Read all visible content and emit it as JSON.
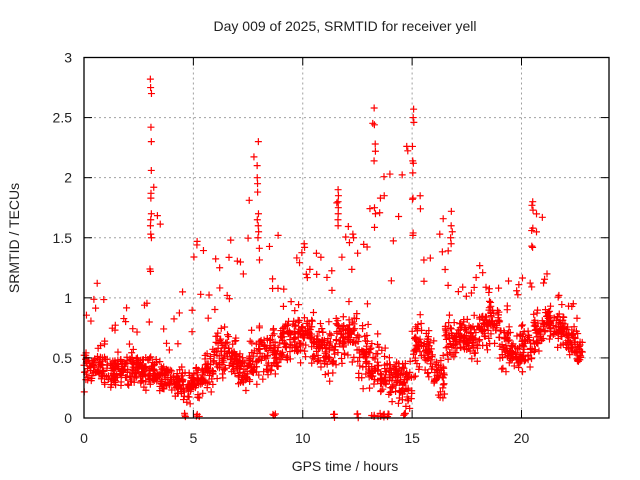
{
  "chart_data": {
    "type": "scatter",
    "title": "Day 009 of 2025, SRMTID for receiver yell",
    "xlabel": "GPS time / hours",
    "ylabel": "SRMTID / TECUs",
    "xlim": [
      0,
      24
    ],
    "ylim": [
      0,
      3
    ],
    "xticks": [
      0,
      5,
      10,
      15,
      20
    ],
    "xtick_labels": [
      "0",
      "5",
      "10",
      "15",
      "20"
    ],
    "yticks": [
      0,
      0.5,
      1,
      1.5,
      2,
      2.5,
      3
    ],
    "ytick_labels": [
      "0",
      "0.5",
      "1",
      "1.5",
      "2",
      "2.5",
      "3"
    ],
    "grid": true,
    "legend": "none",
    "marker": "+",
    "series": [
      {
        "name": "SRMTID",
        "color": "#ff0000",
        "x_extent": [
          0,
          22.8
        ],
        "note": "dense scatter (thousands of points); binned typical level and spread per ~0.5 h plus notable peak values",
        "bins": {
          "x": [
            0.25,
            0.75,
            1.25,
            1.75,
            2.25,
            2.75,
            3.25,
            3.75,
            4.25,
            4.75,
            5.25,
            5.75,
            6.25,
            6.75,
            7.25,
            7.75,
            8.25,
            8.75,
            9.25,
            9.75,
            10.25,
            10.75,
            11.25,
            11.75,
            12.25,
            12.75,
            13.25,
            13.75,
            14.25,
            14.75,
            15.25,
            15.75,
            16.25,
            16.75,
            17.25,
            17.75,
            18.25,
            18.75,
            19.25,
            19.75,
            20.25,
            20.75,
            21.25,
            21.75,
            22.25,
            22.75
          ],
          "median": [
            0.45,
            0.45,
            0.38,
            0.4,
            0.42,
            0.4,
            0.35,
            0.33,
            0.3,
            0.25,
            0.3,
            0.4,
            0.55,
            0.55,
            0.4,
            0.45,
            0.55,
            0.55,
            0.65,
            0.7,
            0.7,
            0.6,
            0.55,
            0.7,
            0.7,
            0.55,
            0.45,
            0.35,
            0.3,
            0.3,
            0.6,
            0.55,
            0.35,
            0.65,
            0.7,
            0.65,
            0.75,
            0.8,
            0.6,
            0.55,
            0.6,
            0.7,
            0.8,
            0.75,
            0.65,
            0.55
          ],
          "spread": [
            0.3,
            0.3,
            0.2,
            0.22,
            0.22,
            0.25,
            0.22,
            0.2,
            0.18,
            0.2,
            0.25,
            0.3,
            0.35,
            0.3,
            0.25,
            0.3,
            0.3,
            0.3,
            0.3,
            0.3,
            0.3,
            0.3,
            0.35,
            0.35,
            0.35,
            0.4,
            0.35,
            0.35,
            0.3,
            0.35,
            0.35,
            0.3,
            0.25,
            0.3,
            0.25,
            0.25,
            0.25,
            0.3,
            0.25,
            0.22,
            0.25,
            0.25,
            0.22,
            0.2,
            0.2,
            0.22
          ],
          "max": [
            1.05,
            1.15,
            0.8,
            0.95,
            0.8,
            1.0,
            2.82,
            0.8,
            0.9,
            1.05,
            1.47,
            1.25,
            1.48,
            1.35,
            1.45,
            2.3,
            1.52,
            1.25,
            1.2,
            1.4,
            1.45,
            1.4,
            1.35,
            1.9,
            1.7,
            1.5,
            2.58,
            2.03,
            1.7,
            2.57,
            2.13,
            1.35,
            1.72,
            1.45,
            1.2,
            1.2,
            1.35,
            1.2,
            1.2,
            1.15,
            1.2,
            1.8,
            1.2,
            1.05,
            0.98,
            0.88
          ]
        },
        "peaks": [
          {
            "x": 3.05,
            "y": [
              2.82,
              2.75,
              2.7,
              2.42,
              2.3,
              2.06,
              1.87,
              1.83,
              1.7,
              1.65,
              1.6,
              1.53,
              1.5,
              1.24,
              1.22
            ]
          },
          {
            "x": 7.95,
            "y": [
              2.3,
              2.1,
              2.0,
              1.95,
              1.88,
              1.7,
              1.65,
              1.6,
              1.55,
              1.5
            ]
          },
          {
            "x": 11.6,
            "y": [
              1.9,
              1.85,
              1.8,
              1.75,
              1.7,
              1.65,
              1.6
            ]
          },
          {
            "x": 13.3,
            "y": [
              2.58,
              2.44,
              2.28,
              2.22,
              2.14,
              1.75,
              1.7
            ]
          },
          {
            "x": 13.75,
            "y": [
              1.85
            ]
          },
          {
            "x": 14.0,
            "y": [
              2.03
            ]
          },
          {
            "x": 15.05,
            "y": [
              2.57,
              2.5,
              2.46,
              2.26,
              2.14,
              2.12,
              1.83,
              1.82,
              1.54,
              1.52
            ]
          },
          {
            "x": 16.8,
            "y": [
              1.72,
              1.6,
              1.55,
              1.5,
              1.45
            ]
          },
          {
            "x": 20.5,
            "y": [
              1.8,
              1.77,
              1.73,
              1.58,
              1.56,
              1.43,
              1.42
            ]
          },
          {
            "x": 5.15,
            "y": [
              1.47,
              1.44
            ]
          },
          {
            "x": 6.7,
            "y": [
              1.48
            ]
          },
          {
            "x": 8.85,
            "y": [
              1.52
            ]
          },
          {
            "x": 10.1,
            "y": [
              1.45,
              1.42
            ]
          },
          {
            "x": 12.3,
            "y": [
              1.53,
              1.5
            ]
          }
        ],
        "zeros_near_x": [
          4.6,
          5.2,
          8.7,
          11.4,
          12.5,
          13.2,
          13.5,
          13.7,
          13.9,
          14.6
        ]
      }
    ]
  }
}
